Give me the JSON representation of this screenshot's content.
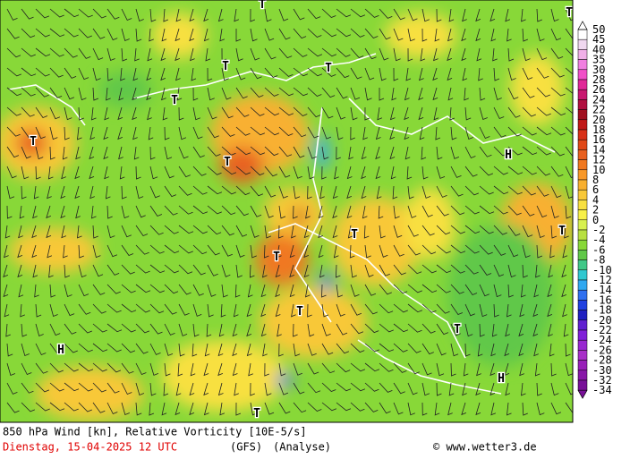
{
  "map": {
    "labels": [
      "T",
      "T",
      "T",
      "T",
      "T",
      "T",
      "T",
      "H",
      "T",
      "T",
      "T",
      "T",
      "T",
      "H",
      "H",
      "T"
    ]
  },
  "legend": {
    "labels": [
      50,
      45,
      40,
      35,
      30,
      28,
      26,
      24,
      22,
      20,
      18,
      16,
      14,
      12,
      10,
      8,
      6,
      4,
      2,
      0,
      -2,
      -4,
      -6,
      -8,
      -10,
      -12,
      -14,
      -16,
      -18,
      -20,
      -22,
      -24,
      -26,
      -28,
      -30,
      -32,
      -34
    ],
    "colors": [
      "#ffffff",
      "#f0d8f0",
      "#f0b0e8",
      "#f080e0",
      "#f050c8",
      "#e02898",
      "#c81870",
      "#b01040",
      "#a01020",
      "#c01818",
      "#d83018",
      "#e04818",
      "#e86020",
      "#f07820",
      "#f89828",
      "#f8b030",
      "#f8c838",
      "#f8e040",
      "#f8f048",
      "#d8f050",
      "#b8e040",
      "#88d838",
      "#60c848",
      "#40c888",
      "#30c8d0",
      "#30a8f0",
      "#3070f0",
      "#2040e0",
      "#2020c0",
      "#6020d0",
      "#8020d8",
      "#9828d0",
      "#a830c8",
      "#9820b8",
      "#8818a8",
      "#781098"
    ]
  },
  "footer": {
    "title": "850 hPa Wind [kn], Relative Vorticity [10E-5/s]",
    "date": "Dienstag, 15-04-2025  12 UTC",
    "model": "(GFS)",
    "run": "(Analyse)",
    "credit": "© www.wetter3.de"
  }
}
